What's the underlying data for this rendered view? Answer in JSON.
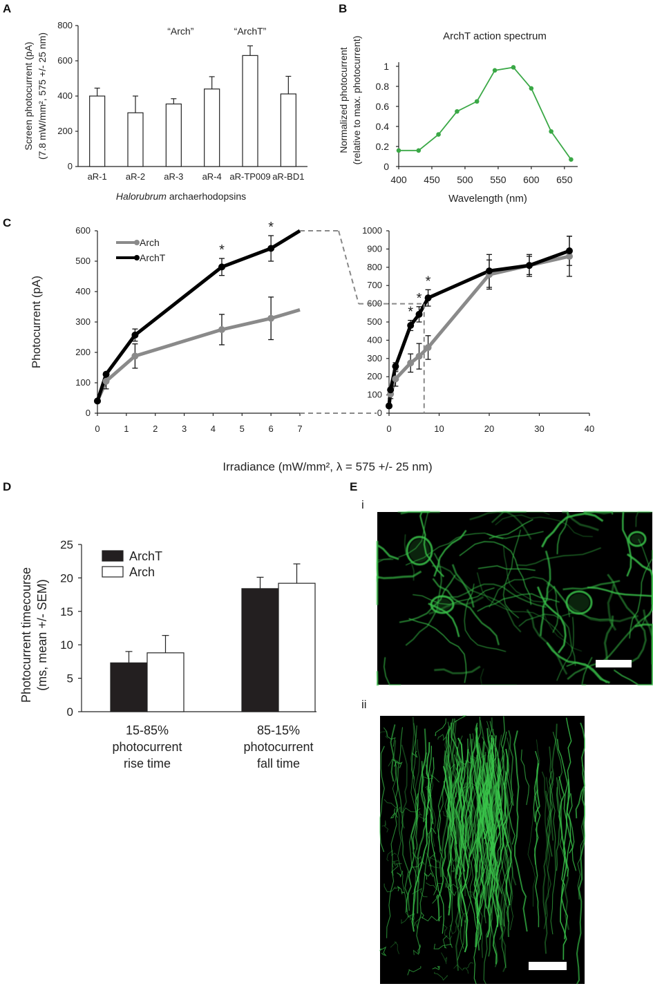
{
  "panels": {
    "A": "A",
    "B": "B",
    "C": "C",
    "D": "D",
    "E": "E",
    "Ei": "i",
    "Eii": "ii"
  },
  "colors": {
    "spectrum_line": "#3aa846",
    "arch_line": "#8a8a8a",
    "archt_line": "#000000",
    "archt_bar": "#231f20",
    "arch_bar": "#ffffff",
    "image_bg": "#000000",
    "neuron_green": "#39c44a"
  },
  "chart_data": [
    {
      "id": "A",
      "type": "bar",
      "ylabel": "Screen photocurrent (pA)",
      "ylabel2": "(7.8 mW/mm², 575 +/- 25 nm)",
      "xlabel_italic": "Halorubrum",
      "xlabel": "archaerhodopsins",
      "annotations": [
        "“Arch”",
        "“ArchT”"
      ],
      "categories": [
        "aR-1",
        "aR-2",
        "aR-3",
        "aR-4",
        "aR-TP009",
        "aR-BD1"
      ],
      "values": [
        400,
        305,
        355,
        440,
        630,
        412
      ],
      "errors": [
        45,
        95,
        30,
        70,
        55,
        100
      ],
      "ylim": [
        0,
        800
      ],
      "yticks": [
        0,
        200,
        400,
        600,
        800
      ]
    },
    {
      "id": "B",
      "type": "line",
      "title": "ArchT action spectrum",
      "ylabel": "Normalized photocurrent",
      "ylabel2": "(relative to max. photocurrent)",
      "xlabel": "Wavelength (nm)",
      "x": [
        400,
        430,
        460,
        488,
        518,
        545,
        573,
        600,
        630,
        660
      ],
      "y": [
        0.16,
        0.16,
        0.32,
        0.55,
        0.65,
        0.96,
        0.99,
        0.78,
        0.35,
        0.07
      ],
      "xlim": [
        400,
        670
      ],
      "ylim": [
        0,
        1
      ],
      "xticks": [
        400,
        450,
        500,
        550,
        600,
        650
      ],
      "yticks": [
        0,
        0.2,
        0.4,
        0.6,
        0.8,
        1
      ],
      "ytick_labels": [
        "0",
        "0.2",
        "0.4",
        "0.6",
        "0.8",
        "1"
      ]
    },
    {
      "id": "C-left",
      "type": "line",
      "ylabel": "Photocurrent (pA)",
      "xlim": [
        0,
        7
      ],
      "ylim": [
        0,
        600
      ],
      "xticks": [
        0,
        1,
        2,
        3,
        4,
        5,
        6,
        7
      ],
      "yticks": [
        0,
        100,
        200,
        300,
        400,
        500,
        600
      ],
      "legend": "top-left",
      "star": "*",
      "star_x": [
        4.3,
        6.0
      ],
      "series": [
        {
          "name": "Arch",
          "x": [
            0,
            0.3,
            1.3,
            4.3,
            6.0,
            7.0
          ],
          "y": [
            40,
            105,
            188,
            275,
            312,
            340
          ],
          "err": [
            0,
            25,
            40,
            50,
            70,
            0
          ]
        },
        {
          "name": "ArchT",
          "x": [
            0,
            0.3,
            1.3,
            4.3,
            6.0,
            7.0
          ],
          "y": [
            40,
            128,
            257,
            481,
            542,
            600
          ],
          "err": [
            0,
            0,
            20,
            28,
            42,
            0
          ]
        }
      ]
    },
    {
      "id": "C-right",
      "type": "line",
      "xlim": [
        0,
        40
      ],
      "ylim": [
        0,
        1000
      ],
      "xticks": [
        0,
        10,
        20,
        30,
        40
      ],
      "yticks": [
        0,
        100,
        200,
        300,
        400,
        500,
        600,
        700,
        800,
        900,
        1000
      ],
      "xlabel": "Irradiance  (mW/mm², λ = 575 +/- 25 nm)",
      "star": "*",
      "star_x": [
        4.3,
        6.0,
        7.8
      ],
      "series": [
        {
          "name": "Arch",
          "x": [
            0,
            0.3,
            1.3,
            4.3,
            6.0,
            7.8,
            20,
            28,
            36
          ],
          "y": [
            40,
            105,
            188,
            275,
            312,
            360,
            760,
            810,
            860
          ],
          "err": [
            0,
            25,
            40,
            50,
            70,
            65,
            80,
            60,
            110
          ]
        },
        {
          "name": "ArchT",
          "x": [
            0,
            0.3,
            1.3,
            4.3,
            6.0,
            7.8,
            20,
            28,
            36
          ],
          "y": [
            40,
            128,
            257,
            481,
            542,
            632,
            780,
            810,
            890
          ],
          "err": [
            0,
            0,
            20,
            28,
            42,
            45,
            90,
            50,
            80
          ]
        }
      ]
    },
    {
      "id": "D",
      "type": "bar",
      "ylabel": "Photocurrent timecourse",
      "ylabel2": "(ms, mean +/- SEM)",
      "ylim": [
        0,
        25
      ],
      "yticks": [
        0,
        5,
        10,
        15,
        20,
        25
      ],
      "categories": [
        [
          "15-85%",
          "photocurrent",
          "rise time"
        ],
        [
          "85-15%",
          "photocurrent",
          "fall time"
        ]
      ],
      "legend": "top-left",
      "series": [
        {
          "name": "ArchT",
          "values": [
            7.3,
            18.4
          ],
          "errors": [
            1.7,
            1.7
          ]
        },
        {
          "name": "Arch",
          "values": [
            8.8,
            19.2
          ],
          "errors": [
            2.6,
            2.9
          ]
        }
      ]
    }
  ]
}
